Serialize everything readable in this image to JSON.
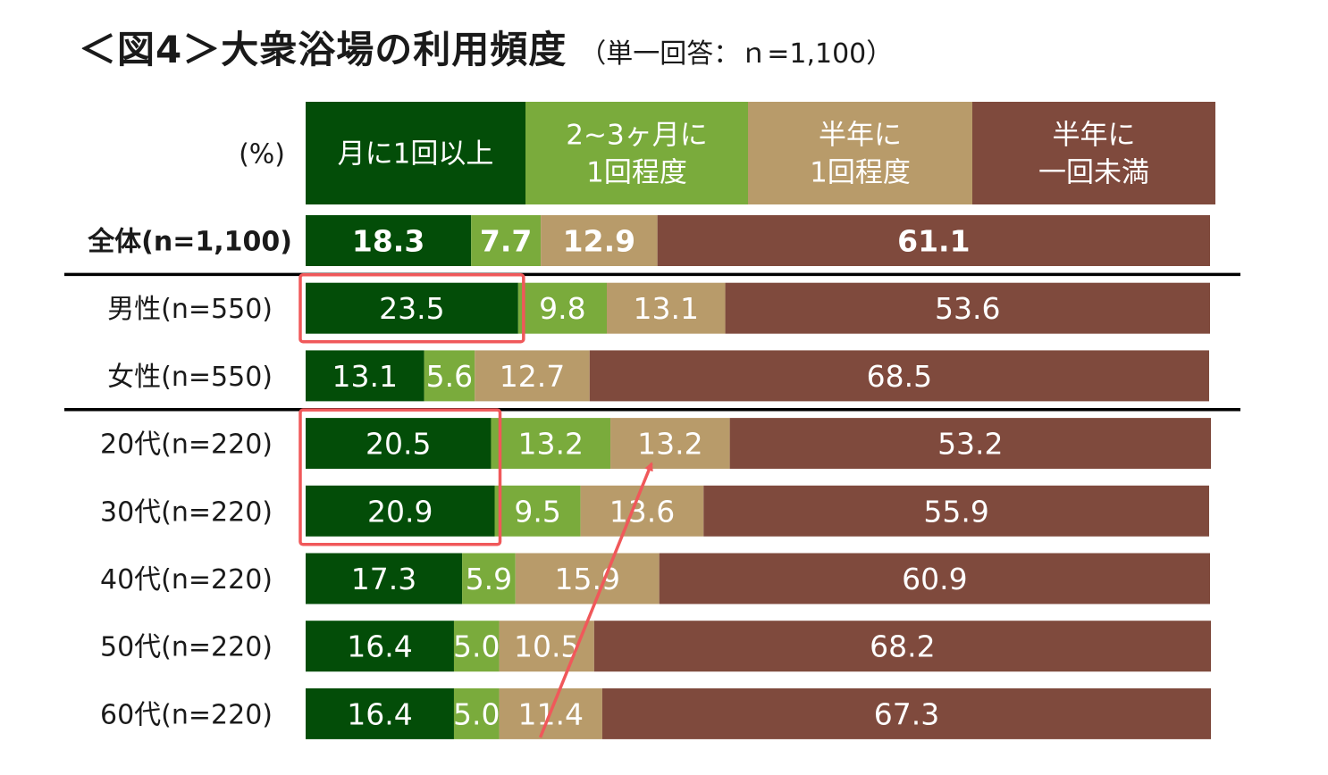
{
  "title": {
    "main": "＜図4＞大衆浴場の利用頻度",
    "sub": "（単一回答：ｎ=1,100）"
  },
  "chart_data": {
    "type": "bar",
    "orientation": "horizontal",
    "stacked": "100%",
    "unit_label": "(%)",
    "categories": [
      "全体(n=1,100)",
      "男性(n=550)",
      "女性(n=550)",
      "20代(n=220)",
      "30代(n=220)",
      "40代(n=220)",
      "50代(n=220)",
      "60代(n=220)"
    ],
    "series": [
      {
        "name": "月に1回以上",
        "legend_lines": [
          "月に1回以上"
        ],
        "color": "#034d08",
        "values": [
          18.3,
          23.5,
          13.1,
          20.5,
          20.9,
          17.3,
          16.4,
          16.4
        ]
      },
      {
        "name": "2~3ヶ月に1回程度",
        "legend_lines": [
          "2~3ヶ月に",
          "1回程度"
        ],
        "color": "#7aab3c",
        "values": [
          7.7,
          9.8,
          5.6,
          13.2,
          9.5,
          5.9,
          5.0,
          5.0
        ]
      },
      {
        "name": "半年に1回程度",
        "legend_lines": [
          "半年に",
          "1回程度"
        ],
        "color": "#b89b6a",
        "values": [
          12.9,
          13.1,
          12.7,
          13.2,
          13.6,
          15.9,
          10.5,
          11.4
        ]
      },
      {
        "name": "半年に一回未満",
        "legend_lines": [
          "半年に",
          "一回未満"
        ],
        "color": "#7f4a3d",
        "values": [
          61.1,
          53.6,
          68.5,
          53.2,
          55.9,
          60.9,
          68.2,
          67.3
        ]
      }
    ],
    "bold_rows": [
      0
    ],
    "separators_after_rows": [
      0,
      2
    ],
    "highlight_boxes": [
      {
        "series": 0,
        "rows": [
          1
        ]
      },
      {
        "series": 0,
        "rows": [
          3,
          4
        ]
      }
    ],
    "arrow": {
      "from": {
        "row": 7,
        "series": 2
      },
      "to": {
        "row": 3,
        "series": 2
      }
    },
    "colors": {
      "highlight": "#f0585a",
      "separator": "#000000"
    }
  }
}
